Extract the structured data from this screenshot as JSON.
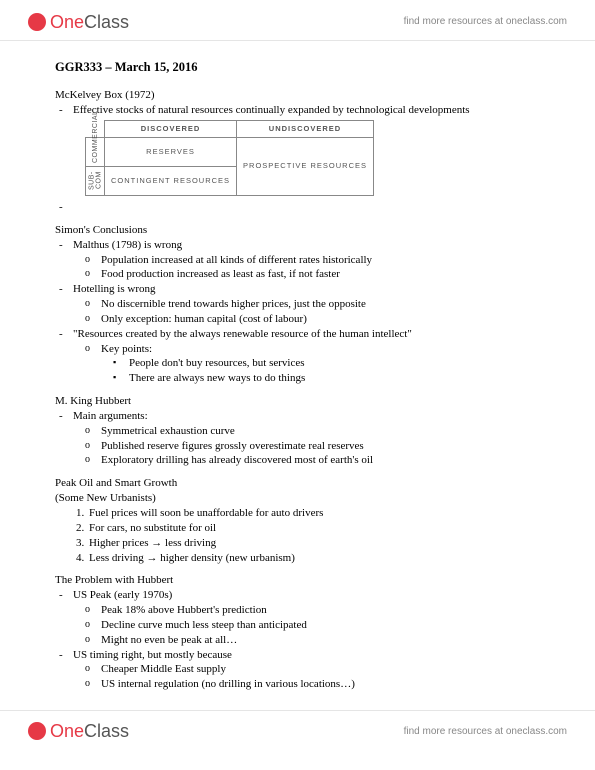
{
  "brand": {
    "one": "One",
    "class": "Class",
    "tagline": "find more resources at oneclass.com"
  },
  "title": "GGR333 – March 15, 2016",
  "mckelvey": {
    "heading": "McKelvey Box (1972)",
    "bullet": "Effective stocks of natural resources continually expanded by technological developments",
    "col1": "DISCOVERED",
    "col2": "UNDISCOVERED",
    "row1": "COMMERCIAL",
    "row2": "SUB-COM",
    "c11": "RESERVES",
    "c12": "PROSPECTIVE RESOURCES",
    "c21": "CONTINGENT RESOURCES"
  },
  "simon": {
    "heading": "Simon's Conclusions",
    "b1": "Malthus (1798) is wrong",
    "b1a": "Population increased at all kinds of different rates historically",
    "b1b": "Food production increased as least as fast, if not faster",
    "b2": "Hotelling is wrong",
    "b2a": "No discernible trend towards higher prices, just the opposite",
    "b2b": "Only exception: human capital (cost of labour)",
    "b3": "\"Resources created by the always renewable resource of the human intellect\"",
    "b3a": "Key points:",
    "b3a1": "People don't buy resources, but services",
    "b3a2": "There are always new ways to do things"
  },
  "hubbert": {
    "heading": "M. King Hubbert",
    "b1": "Main arguments:",
    "b1a": "Symmetrical exhaustion curve",
    "b1b": "Published reserve figures grossly overestimate real reserves",
    "b1c": "Exploratory drilling has already discovered most of earth's oil"
  },
  "peakoil": {
    "heading": "Peak Oil and Smart Growth",
    "sub": "(Some New Urbanists)",
    "n1": "Fuel prices will soon be unaffordable for auto drivers",
    "n2": "For cars, no substitute for oil",
    "n3": "Higher prices → less driving",
    "n4": "Less driving → higher density (new urbanism)"
  },
  "problem": {
    "heading": "The Problem with Hubbert",
    "b1": "US Peak (early 1970s)",
    "b1a": "Peak 18% above Hubbert's prediction",
    "b1b": "Decline curve much less steep than anticipated",
    "b1c": "Might no even be peak at all…",
    "b2": "US timing right, but mostly because",
    "b2a": "Cheaper Middle East supply",
    "b2b": "US internal regulation (no drilling in various locations…)"
  }
}
